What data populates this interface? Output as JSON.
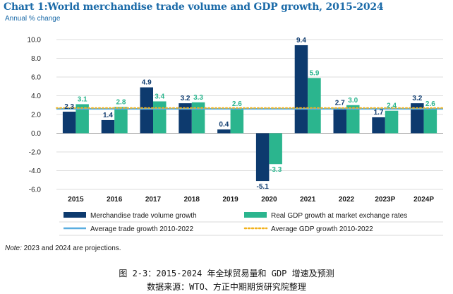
{
  "chart_data": {
    "type": "bar",
    "title": "Chart 1:World merchandise trade volume and GDP growth, 2015-2024",
    "subtitle": "Annual % change",
    "categories": [
      "2015",
      "2016",
      "2017",
      "2018",
      "2019",
      "2020",
      "2021",
      "2022",
      "2023P",
      "2024P"
    ],
    "series": [
      {
        "name": "Merchandise trade volume growth",
        "values": [
          2.3,
          1.4,
          4.9,
          3.2,
          0.4,
          -5.1,
          9.4,
          2.7,
          1.7,
          3.2
        ],
        "value_labels": [
          "2.3",
          "1.4",
          "4.9",
          "3.2",
          "0.4",
          "-5.1",
          "9.4",
          "2.7",
          "1.7",
          "3.2"
        ],
        "color": "#0d3a6e"
      },
      {
        "name": "Real GDP growth at market exchange rates",
        "values": [
          3.1,
          2.8,
          3.4,
          3.3,
          2.6,
          -3.3,
          5.9,
          3.0,
          2.4,
          2.6
        ],
        "value_labels": [
          "3.1",
          "2.8",
          "3.4",
          "3.3",
          "2.6",
          "-3.3",
          "5.9",
          "3.0",
          "2.4",
          "2.6"
        ],
        "color": "#2bb58e"
      }
    ],
    "reference_lines": [
      {
        "name": "Average trade growth 2010-2022",
        "value": 2.6,
        "color": "#5aaee0",
        "style": "solid"
      },
      {
        "name": "Average GDP growth 2010-2022",
        "value": 2.7,
        "color": "#f2b21e",
        "style": "dotted"
      }
    ],
    "ylim": [
      -6,
      10
    ],
    "yticks": [
      10,
      8,
      6,
      4,
      2,
      0,
      -2,
      -4,
      -6
    ],
    "ytick_labels": [
      "10.0",
      "8.0",
      "6.0",
      "4.0",
      "2.0",
      "0.0",
      "-2.0",
      "-4.0",
      "-6.0"
    ],
    "grid": "horizontal",
    "legend": "bottom",
    "xlabel": "",
    "ylabel": ""
  },
  "note": {
    "prefix": "Note:",
    "text": " 2023 and 2024 are projections."
  },
  "caption": {
    "line1": "图 2-3：2015-2024 年全球贸易量和 GDP 增速及预测",
    "line2": "数据来源：WTO、方正中期期货研究院整理"
  }
}
